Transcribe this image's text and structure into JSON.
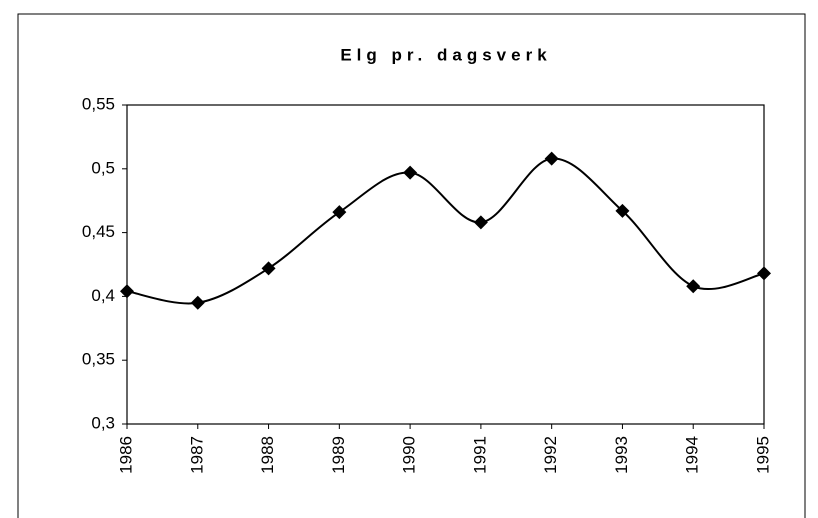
{
  "chart_data": {
    "type": "line",
    "title": "Elg pr. dagsverk",
    "categories": [
      "1986",
      "1987",
      "1988",
      "1989",
      "1990",
      "1991",
      "1992",
      "1993",
      "1994",
      "1995"
    ],
    "series": [
      {
        "color": "#000000",
        "values": [
          0.404,
          0.395,
          0.422,
          0.466,
          0.497,
          0.458,
          0.508,
          0.467,
          0.408,
          0.418
        ]
      }
    ],
    "ylim": [
      0.3,
      0.55
    ],
    "yticks": [
      {
        "value": 0.3,
        "label": "0,3"
      },
      {
        "value": 0.35,
        "label": "0,35"
      },
      {
        "value": 0.4,
        "label": "0,4"
      },
      {
        "value": 0.45,
        "label": "0,45"
      },
      {
        "value": 0.5,
        "label": "0,5"
      },
      {
        "value": 0.55,
        "label": "0,55"
      }
    ],
    "grid": false,
    "smooth": true
  }
}
